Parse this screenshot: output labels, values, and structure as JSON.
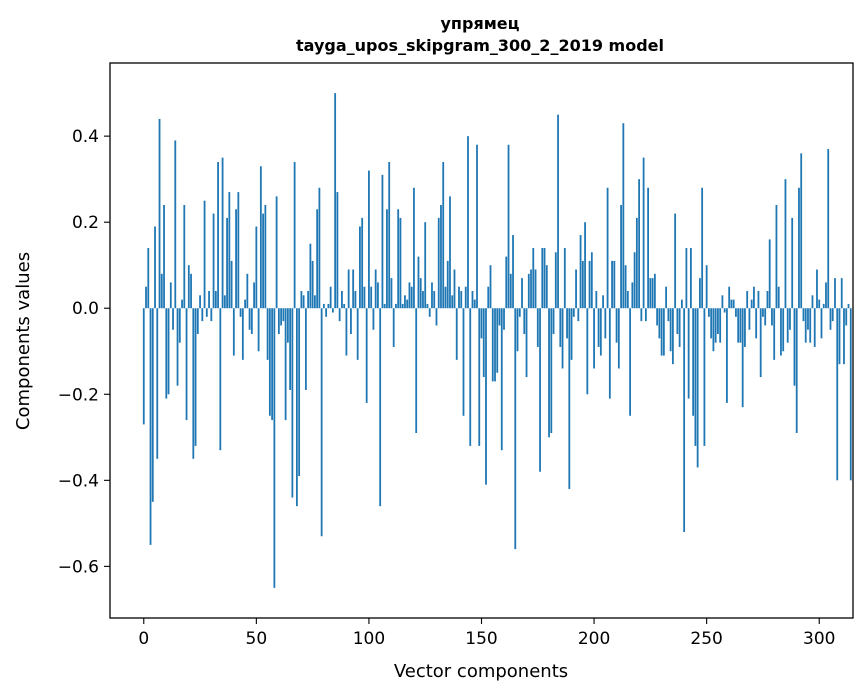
{
  "chart_data": {
    "type": "bar",
    "title": "упрямец",
    "subtitle": "tayga_upos_skipgram_300_2_2019 model",
    "xlabel": "Vector components",
    "ylabel": "Components values",
    "xlim": [
      -15,
      315
    ],
    "ylim": [
      -0.72,
      0.57
    ],
    "xticks": [
      0,
      50,
      100,
      150,
      200,
      250,
      300
    ],
    "yticks": [
      -0.6,
      -0.4,
      -0.2,
      0.0,
      0.2,
      0.4
    ],
    "ytick_labels": [
      "−0.6",
      "−0.4",
      "−0.2",
      "0.0",
      "0.2",
      "0.4"
    ],
    "bar_color": "#1f77b4",
    "grid": false,
    "values": [
      -0.27,
      0.05,
      0.14,
      -0.55,
      -0.45,
      0.19,
      -0.35,
      0.44,
      0.08,
      0.24,
      -0.21,
      -0.2,
      0.06,
      -0.05,
      0.39,
      -0.18,
      -0.08,
      0.02,
      0.24,
      -0.26,
      0.1,
      0.08,
      -0.35,
      -0.32,
      -0.06,
      0.03,
      -0.03,
      0.25,
      -0.02,
      0.04,
      -0.03,
      0.22,
      0.04,
      0.34,
      -0.33,
      0.35,
      0.03,
      0.21,
      0.27,
      0.11,
      -0.11,
      0.23,
      0.27,
      -0.02,
      -0.12,
      0.02,
      0.08,
      -0.05,
      -0.06,
      0.06,
      0.19,
      -0.1,
      0.33,
      0.22,
      0.24,
      -0.12,
      -0.25,
      -0.26,
      -0.65,
      0.26,
      -0.06,
      -0.04,
      -0.03,
      -0.26,
      -0.08,
      -0.19,
      -0.44,
      0.34,
      -0.46,
      -0.39,
      0.04,
      0.03,
      -0.19,
      0.04,
      0.15,
      0.11,
      0.03,
      0.23,
      0.28,
      -0.53,
      0.01,
      -0.02,
      0.01,
      0.05,
      -0.01,
      0.5,
      0.27,
      -0.03,
      0.04,
      0.01,
      -0.11,
      0.09,
      -0.06,
      0.09,
      0.04,
      -0.12,
      0.19,
      0.21,
      0.05,
      -0.22,
      0.32,
      0.05,
      -0.05,
      0.09,
      0.06,
      -0.46,
      0.31,
      0.01,
      0.23,
      0.34,
      0.07,
      -0.09,
      0.01,
      0.23,
      0.21,
      0.01,
      0.03,
      0.02,
      0.06,
      0.05,
      0.28,
      -0.29,
      0.12,
      0.07,
      0.04,
      0.2,
      0.01,
      -0.02,
      0.06,
      0.04,
      -0.04,
      0.21,
      0.24,
      0.34,
      0.05,
      0.11,
      0.26,
      0.03,
      0.09,
      -0.12,
      0.05,
      0.04,
      -0.25,
      0.05,
      0.4,
      -0.32,
      0.04,
      0.02,
      0.38,
      -0.32,
      -0.07,
      -0.16,
      -0.41,
      0.05,
      0.1,
      -0.17,
      -0.17,
      -0.15,
      -0.04,
      -0.33,
      -0.05,
      0.12,
      0.38,
      0.08,
      0.17,
      -0.56,
      -0.1,
      -0.02,
      0.07,
      -0.06,
      -0.16,
      0.08,
      0.09,
      0.14,
      0.09,
      -0.09,
      -0.38,
      0.14,
      0.14,
      0.1,
      -0.3,
      -0.29,
      -0.06,
      0.13,
      0.45,
      -0.09,
      -0.14,
      0.14,
      -0.07,
      -0.42,
      -0.12,
      -0.02,
      0.09,
      -0.03,
      0.17,
      0.11,
      0.2,
      -0.2,
      0.11,
      0.13,
      -0.14,
      0.04,
      -0.09,
      -0.11,
      0.03,
      -0.07,
      0.28,
      -0.21,
      0.11,
      0.11,
      -0.08,
      -0.14,
      0.24,
      0.43,
      0.1,
      0.04,
      -0.25,
      0.06,
      0.13,
      0.21,
      0.3,
      -0.03,
      0.35,
      -0.03,
      0.28,
      0.07,
      0.07,
      0.08,
      -0.04,
      -0.07,
      -0.11,
      -0.11,
      0.05,
      -0.03,
      -0.1,
      -0.13,
      0.22,
      -0.06,
      -0.09,
      0.02,
      -0.52,
      0.14,
      -0.21,
      0.14,
      -0.25,
      -0.32,
      -0.37,
      0.07,
      0.28,
      -0.32,
      0.1,
      -0.02,
      -0.07,
      -0.1,
      -0.08,
      -0.06,
      -0.08,
      0.03,
      -0.01,
      -0.22,
      0.05,
      0.02,
      0.02,
      -0.02,
      -0.08,
      -0.08,
      -0.23,
      -0.09,
      0.04,
      -0.05,
      0.02,
      0.05,
      -0.07,
      0.04,
      -0.16,
      -0.02,
      -0.04,
      0.04,
      0.16,
      -0.04,
      -0.12,
      0.24,
      0.05,
      -0.11,
      -0.1,
      0.3,
      -0.08,
      -0.05,
      0.21,
      -0.18,
      -0.29,
      0.28,
      0.36,
      -0.03,
      -0.08,
      -0.05,
      -0.08,
      0.03,
      -0.09,
      0.09,
      0.02,
      -0.07,
      0.01,
      0.06,
      0.37,
      -0.05,
      -0.03,
      0.07,
      -0.4,
      -0.13,
      0.07,
      -0.13,
      -0.04,
      0.01,
      -0.4
    ]
  }
}
